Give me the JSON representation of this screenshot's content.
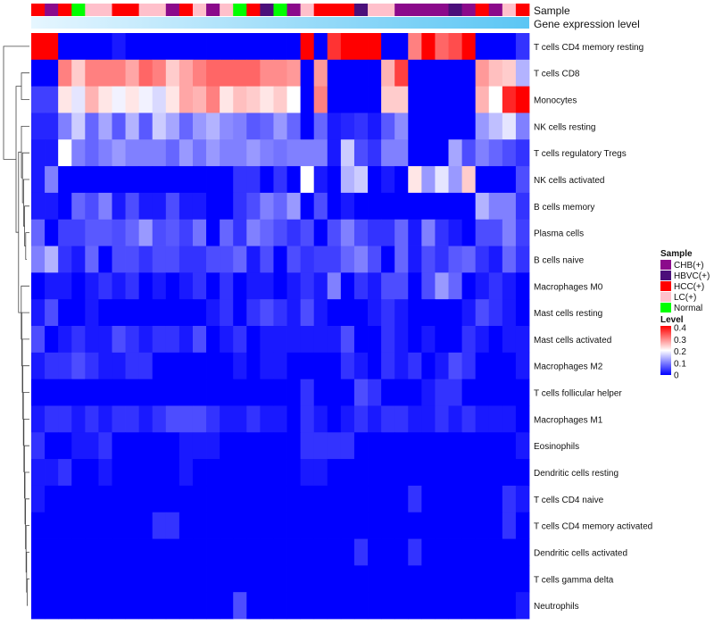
{
  "chart_data": {
    "type": "heatmap",
    "title": "",
    "annotation_tracks": [
      "Sample",
      "Gene expression level"
    ],
    "legend_sample_title": "Sample",
    "legend_sample": [
      {
        "label": "CHB(+)",
        "color": "#8B0A8B"
      },
      {
        "label": "HBVC(+)",
        "color": "#4B0F7A"
      },
      {
        "label": "HCC(+)",
        "color": "#FF0000"
      },
      {
        "label": "LC(+)",
        "color": "#FFC0CB"
      },
      {
        "label": "Normal",
        "color": "#00FF00"
      }
    ],
    "legend_level_title": "Level",
    "legend_level_ticks": [
      "0.4",
      "0.3",
      "0.2",
      "0.1",
      "0"
    ],
    "value_range": [
      0,
      0.4
    ],
    "color_scale": [
      "#0000FF",
      "#FFFFFF",
      "#FF0000"
    ],
    "samples": [
      "HCC(+)",
      "CHB(+)",
      "HCC(+)",
      "Normal",
      "LC(+)",
      "LC(+)",
      "HCC(+)",
      "HCC(+)",
      "LC(+)",
      "LC(+)",
      "CHB(+)",
      "HCC(+)",
      "LC(+)",
      "CHB(+)",
      "LC(+)",
      "Normal",
      "HCC(+)",
      "HBVC(+)",
      "Normal",
      "CHB(+)",
      "LC(+)",
      "HCC(+)",
      "HCC(+)",
      "HCC(+)",
      "HBVC(+)",
      "LC(+)",
      "LC(+)",
      "CHB(+)",
      "CHB(+)",
      "CHB(+)",
      "CHB(+)",
      "HBVC(+)",
      "CHB(+)",
      "HCC(+)",
      "CHB(+)",
      "LC(+)",
      "HCC(+)"
    ],
    "gene_expression_gradient": [
      "#E6F6FF",
      "#5BC6F4"
    ],
    "rows": [
      {
        "name": "T cells CD4 memory resting",
        "values": [
          0.4,
          0.4,
          0,
          0,
          0,
          0,
          0.02,
          0,
          0,
          0,
          0,
          0,
          0,
          0,
          0,
          0,
          0,
          0,
          0,
          0,
          0.4,
          0,
          0.36,
          0.4,
          0.4,
          0.4,
          0,
          0,
          0.3,
          0.4,
          0.32,
          0.34,
          0.4,
          0,
          0,
          0,
          0.04
        ]
      },
      {
        "name": "T cells CD8",
        "values": [
          0,
          0,
          0.3,
          0.24,
          0.3,
          0.3,
          0.3,
          0.27,
          0.32,
          0.3,
          0.24,
          0.27,
          0.3,
          0.32,
          0.32,
          0.32,
          0.32,
          0.29,
          0.29,
          0.28,
          0,
          0.28,
          0,
          0,
          0,
          0,
          0.26,
          0.35,
          0,
          0,
          0,
          0,
          0,
          0.28,
          0.25,
          0.24,
          0.14
        ]
      },
      {
        "name": "Monocytes",
        "values": [
          0.05,
          0.05,
          0.22,
          0.18,
          0.26,
          0.22,
          0.19,
          0.22,
          0.19,
          0.17,
          0.22,
          0.27,
          0.26,
          0.3,
          0.22,
          0.25,
          0.24,
          0.22,
          0.24,
          0.2,
          0,
          0.3,
          0,
          0,
          0,
          0,
          0.24,
          0.24,
          0,
          0,
          0,
          0,
          0,
          0.26,
          0.2,
          0.37,
          0.4
        ]
      },
      {
        "name": "NK cells resting",
        "values": [
          0.03,
          0.03,
          0.1,
          0.16,
          0.08,
          0.13,
          0.07,
          0.14,
          0.07,
          0.16,
          0.13,
          0.08,
          0.12,
          0.14,
          0.11,
          0.1,
          0.07,
          0.08,
          0.12,
          0.08,
          0,
          0.08,
          0.02,
          0.03,
          0.04,
          0.02,
          0.07,
          0.11,
          0,
          0,
          0,
          0,
          0,
          0.12,
          0.15,
          0.18,
          0.1
        ]
      },
      {
        "name": "T cells regulatory  Tregs",
        "values": [
          0.02,
          0.02,
          0.2,
          0.1,
          0.08,
          0.1,
          0.12,
          0.1,
          0.1,
          0.1,
          0.08,
          0.12,
          0.09,
          0.12,
          0.1,
          0.1,
          0.12,
          0.1,
          0.09,
          0.1,
          0.1,
          0.1,
          0.02,
          0.16,
          0.06,
          0.04,
          0.1,
          0.1,
          0,
          0,
          0,
          0.13,
          0.06,
          0.1,
          0.08,
          0.06,
          0.04
        ]
      },
      {
        "name": "NK cells activated",
        "values": [
          0.02,
          0.1,
          0,
          0,
          0,
          0,
          0,
          0,
          0,
          0,
          0,
          0,
          0,
          0,
          0,
          0.04,
          0.04,
          0,
          0.04,
          0,
          0.2,
          0.02,
          0,
          0.14,
          0.16,
          0,
          0.02,
          0,
          0.22,
          0.12,
          0.18,
          0.12,
          0.24,
          0,
          0,
          0,
          0.06
        ]
      },
      {
        "name": "B cells memory",
        "values": [
          0.02,
          0.02,
          0,
          0.08,
          0.06,
          0.1,
          0.02,
          0.06,
          0.02,
          0.02,
          0.06,
          0.02,
          0.02,
          0,
          0,
          0.04,
          0.06,
          0.1,
          0.08,
          0.12,
          0,
          0.06,
          0,
          0.02,
          0,
          0,
          0,
          0,
          0,
          0,
          0,
          0,
          0,
          0.14,
          0.1,
          0.1,
          0.04
        ]
      },
      {
        "name": "Plasma cells",
        "values": [
          0.08,
          0,
          0.05,
          0.05,
          0.07,
          0.07,
          0.06,
          0.08,
          0.12,
          0.06,
          0.07,
          0.05,
          0.09,
          0,
          0.08,
          0.04,
          0.1,
          0.08,
          0.06,
          0.04,
          0.06,
          0,
          0.06,
          0.1,
          0.06,
          0.04,
          0.04,
          0.08,
          0.02,
          0.1,
          0.04,
          0.02,
          0,
          0.06,
          0.06,
          0.1,
          0.05
        ]
      },
      {
        "name": "B cells naive",
        "values": [
          0.1,
          0.14,
          0.04,
          0.02,
          0.08,
          0,
          0.06,
          0.06,
          0.04,
          0.06,
          0.06,
          0.04,
          0.04,
          0.06,
          0.06,
          0.08,
          0.02,
          0.06,
          0,
          0.06,
          0.04,
          0.05,
          0.05,
          0.08,
          0.1,
          0.06,
          0,
          0.08,
          0.02,
          0.06,
          0.04,
          0.07,
          0.08,
          0.04,
          0.02,
          0.08,
          0.04
        ]
      },
      {
        "name": "Macrophages M0",
        "values": [
          0,
          0.02,
          0.02,
          0,
          0.02,
          0.04,
          0.02,
          0.04,
          0,
          0.02,
          0,
          0.02,
          0.04,
          0,
          0.04,
          0,
          0.02,
          0.02,
          0,
          0.02,
          0.04,
          0.02,
          0.1,
          0,
          0.04,
          0.02,
          0.06,
          0.06,
          0,
          0.06,
          0.12,
          0.08,
          0,
          0.02,
          0.04,
          0.02,
          0
        ]
      },
      {
        "name": "Mast cells resting",
        "values": [
          0.02,
          0.06,
          0,
          0,
          0.02,
          0,
          0,
          0,
          0,
          0,
          0,
          0,
          0,
          0.02,
          0.04,
          0,
          0.04,
          0.06,
          0.04,
          0.02,
          0.06,
          0.02,
          0,
          0,
          0,
          0.02,
          0.04,
          0.02,
          0,
          0,
          0,
          0,
          0.02,
          0.06,
          0.04,
          0.02,
          0
        ]
      },
      {
        "name": "Mast cells activated",
        "values": [
          0.06,
          0,
          0.02,
          0.04,
          0.02,
          0.02,
          0.06,
          0.04,
          0.02,
          0.04,
          0.04,
          0.02,
          0.06,
          0,
          0.02,
          0.04,
          0,
          0.02,
          0.02,
          0.02,
          0.02,
          0.02,
          0.02,
          0.06,
          0,
          0,
          0.04,
          0.02,
          0,
          0.02,
          0,
          0,
          0.04,
          0.02,
          0,
          0.02,
          0.02
        ]
      },
      {
        "name": "Macrophages M2",
        "values": [
          0.02,
          0.04,
          0.04,
          0.06,
          0.04,
          0.02,
          0.02,
          0.04,
          0.04,
          0,
          0,
          0,
          0,
          0,
          0,
          0.02,
          0,
          0.02,
          0.02,
          0,
          0,
          0,
          0,
          0.04,
          0.02,
          0,
          0.04,
          0.02,
          0.04,
          0,
          0.02,
          0.06,
          0.04,
          0,
          0,
          0,
          0.02
        ]
      },
      {
        "name": "T cells follicular helper",
        "values": [
          0,
          0,
          0,
          0,
          0,
          0,
          0,
          0,
          0,
          0,
          0,
          0,
          0,
          0,
          0,
          0,
          0,
          0,
          0,
          0,
          0.04,
          0,
          0,
          0,
          0.06,
          0.04,
          0,
          0,
          0,
          0.02,
          0.04,
          0.04,
          0,
          0,
          0,
          0,
          0
        ]
      },
      {
        "name": "Macrophages M1",
        "values": [
          0.02,
          0.04,
          0.04,
          0.02,
          0.04,
          0.02,
          0.04,
          0.04,
          0.02,
          0.04,
          0.06,
          0.06,
          0.06,
          0.04,
          0.02,
          0.02,
          0.04,
          0.02,
          0.02,
          0,
          0.04,
          0.02,
          0,
          0.02,
          0.04,
          0.02,
          0.04,
          0.04,
          0.02,
          0.02,
          0.04,
          0.02,
          0.04,
          0.02,
          0.02,
          0.02,
          0
        ]
      },
      {
        "name": "Eosinophils",
        "values": [
          0.04,
          0,
          0,
          0.02,
          0.02,
          0.04,
          0,
          0,
          0,
          0,
          0,
          0.02,
          0.02,
          0.02,
          0,
          0,
          0,
          0,
          0,
          0,
          0.04,
          0.04,
          0.04,
          0.04,
          0,
          0,
          0,
          0,
          0,
          0,
          0,
          0,
          0,
          0,
          0,
          0,
          0.02
        ]
      },
      {
        "name": "Dendritic cells resting",
        "values": [
          0.02,
          0.02,
          0.04,
          0,
          0,
          0.02,
          0,
          0,
          0,
          0,
          0,
          0.02,
          0,
          0,
          0,
          0,
          0,
          0,
          0,
          0,
          0.02,
          0.02,
          0,
          0,
          0,
          0,
          0,
          0,
          0,
          0,
          0,
          0,
          0,
          0,
          0,
          0,
          0
        ]
      },
      {
        "name": "T cells CD4 naive",
        "values": [
          0.02,
          0,
          0,
          0,
          0,
          0,
          0,
          0,
          0,
          0,
          0,
          0,
          0,
          0,
          0,
          0,
          0,
          0,
          0,
          0,
          0,
          0,
          0,
          0,
          0,
          0,
          0,
          0,
          0.04,
          0,
          0,
          0,
          0,
          0,
          0,
          0.04,
          0.02
        ]
      },
      {
        "name": "T cells CD4 memory activated",
        "values": [
          0,
          0,
          0,
          0,
          0,
          0,
          0,
          0,
          0,
          0.04,
          0.04,
          0,
          0,
          0,
          0,
          0,
          0,
          0,
          0,
          0,
          0,
          0,
          0,
          0,
          0,
          0,
          0,
          0,
          0,
          0,
          0,
          0,
          0,
          0,
          0,
          0.04,
          0
        ]
      },
      {
        "name": "Dendritic cells activated",
        "values": [
          0,
          0,
          0,
          0,
          0,
          0,
          0,
          0,
          0,
          0,
          0,
          0,
          0,
          0,
          0,
          0,
          0,
          0,
          0,
          0,
          0,
          0,
          0,
          0,
          0.04,
          0,
          0,
          0,
          0.04,
          0,
          0,
          0,
          0,
          0,
          0,
          0,
          0
        ]
      },
      {
        "name": "T cells gamma delta",
        "values": [
          0,
          0,
          0,
          0,
          0,
          0,
          0,
          0,
          0,
          0,
          0,
          0,
          0,
          0,
          0,
          0,
          0,
          0,
          0,
          0,
          0,
          0,
          0,
          0,
          0,
          0,
          0,
          0,
          0,
          0,
          0,
          0,
          0,
          0,
          0,
          0,
          0
        ]
      },
      {
        "name": "Neutrophils",
        "values": [
          0,
          0,
          0,
          0,
          0,
          0,
          0,
          0,
          0,
          0,
          0,
          0,
          0,
          0,
          0,
          0.06,
          0,
          0,
          0,
          0,
          0,
          0,
          0,
          0,
          0,
          0,
          0,
          0,
          0,
          0,
          0,
          0,
          0,
          0,
          0,
          0,
          0.02
        ]
      }
    ]
  }
}
